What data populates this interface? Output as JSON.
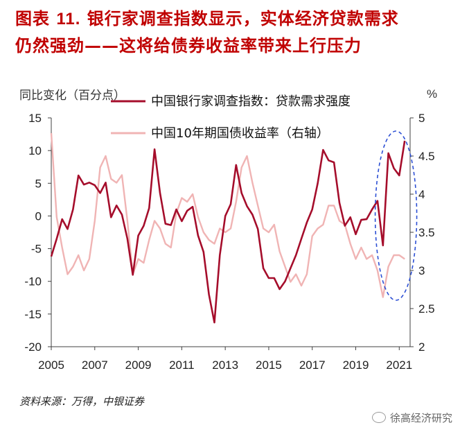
{
  "title": {
    "label": "图表",
    "number": "11.",
    "text_line1": "银行家调查指数显示，实体经济贷款需求",
    "text_line2": "仍然强劲——这将给债券收益率带来上行压力"
  },
  "source": "资料来源：万得，中银证券",
  "watermark": "徐高经济研究",
  "colors": {
    "title": "#c00000",
    "series1": "#a50d2b",
    "series2": "#f0b4b4",
    "ellipse": "#2c4fd4",
    "axis": "#404040"
  },
  "chart_data": {
    "type": "line",
    "left_axis_label": "同比变化（百分点）",
    "right_axis_label": "%",
    "left_ylim": [
      -20,
      15
    ],
    "left_ticks": [
      15,
      10,
      5,
      0,
      -5,
      -10,
      -15,
      -20
    ],
    "right_ylim": [
      2,
      5
    ],
    "right_ticks": [
      "5",
      "4.5",
      "4",
      "3.5",
      "3",
      "2.5",
      "2"
    ],
    "xlim": [
      2005,
      2021.5
    ],
    "x_ticks": [
      "2005",
      "2007",
      "2009",
      "2011",
      "2013",
      "2015",
      "2017",
      "2019",
      "2021"
    ],
    "legend_placement": "top",
    "grid": false,
    "series": [
      {
        "name": "中国银行家调查指数：贷款需求强度",
        "axis": "left",
        "x": [
          2005.0,
          2005.25,
          2005.5,
          2005.75,
          2006.0,
          2006.25,
          2006.5,
          2006.75,
          2007.0,
          2007.25,
          2007.5,
          2007.75,
          2008.0,
          2008.25,
          2008.5,
          2008.75,
          2009.0,
          2009.25,
          2009.5,
          2009.75,
          2010.0,
          2010.25,
          2010.5,
          2010.75,
          2011.0,
          2011.25,
          2011.5,
          2011.75,
          2012.0,
          2012.25,
          2012.5,
          2012.75,
          2013.0,
          2013.25,
          2013.5,
          2013.75,
          2014.0,
          2014.25,
          2014.5,
          2014.75,
          2015.0,
          2015.25,
          2015.5,
          2015.75,
          2016.0,
          2016.25,
          2016.5,
          2016.75,
          2017.0,
          2017.25,
          2017.5,
          2017.75,
          2018.0,
          2018.25,
          2018.5,
          2018.75,
          2019.0,
          2019.25,
          2019.5,
          2019.75,
          2020.0,
          2020.25,
          2020.5,
          2020.75,
          2021.0,
          2021.25
        ],
        "values": [
          -6.2,
          -3.5,
          -0.5,
          -2.0,
          1.0,
          6.2,
          4.8,
          5.1,
          4.7,
          3.5,
          5.1,
          -0.2,
          1.6,
          0.2,
          -3.5,
          -9.0,
          -3.0,
          -1.5,
          1.2,
          10.2,
          3.5,
          -1.2,
          -1.4,
          1.0,
          -0.8,
          0.8,
          1.4,
          -3.0,
          -5.5,
          -12.0,
          -16.3,
          -6.0,
          0.0,
          1.8,
          7.8,
          3.5,
          1.5,
          0.2,
          -2.0,
          -8.0,
          -9.5,
          -9.5,
          -11.2,
          -10.0,
          -8.0,
          -6.0,
          -3.5,
          -1.0,
          1.0,
          5.0,
          10.1,
          8.5,
          8.2,
          2.0,
          -1.5,
          -0.2,
          -2.8,
          -0.6,
          -0.5,
          1.0,
          2.3,
          -4.5,
          9.6,
          7.3,
          6.2,
          11.5
        ]
      },
      {
        "name": "中国10年期国债收益率（右轴）",
        "axis": "right",
        "x": [
          2005.0,
          2005.25,
          2005.5,
          2005.75,
          2006.0,
          2006.25,
          2006.5,
          2006.75,
          2007.0,
          2007.25,
          2007.5,
          2007.75,
          2008.0,
          2008.25,
          2008.5,
          2008.75,
          2009.0,
          2009.25,
          2009.5,
          2009.75,
          2010.0,
          2010.25,
          2010.5,
          2010.75,
          2011.0,
          2011.25,
          2011.5,
          2011.75,
          2012.0,
          2012.25,
          2012.5,
          2012.75,
          2013.0,
          2013.25,
          2013.5,
          2013.75,
          2014.0,
          2014.25,
          2014.5,
          2014.75,
          2015.0,
          2015.25,
          2015.5,
          2015.75,
          2016.0,
          2016.25,
          2016.5,
          2016.75,
          2017.0,
          2017.25,
          2017.5,
          2017.75,
          2018.0,
          2018.25,
          2018.5,
          2018.75,
          2019.0,
          2019.25,
          2019.5,
          2019.75,
          2020.0,
          2020.25,
          2020.5,
          2020.75,
          2021.0,
          2021.25
        ],
        "values": [
          4.8,
          3.7,
          3.3,
          2.95,
          3.05,
          3.2,
          3.0,
          3.15,
          3.65,
          4.35,
          4.5,
          4.2,
          4.15,
          4.25,
          3.65,
          2.95,
          3.15,
          3.1,
          3.4,
          3.65,
          3.55,
          3.35,
          3.3,
          3.75,
          3.95,
          3.9,
          4.0,
          3.7,
          3.5,
          3.4,
          3.35,
          3.55,
          3.5,
          3.55,
          3.9,
          4.35,
          4.5,
          4.15,
          3.85,
          3.55,
          3.5,
          3.6,
          3.25,
          3.05,
          2.85,
          2.95,
          2.8,
          2.95,
          3.45,
          3.55,
          3.6,
          3.85,
          3.85,
          3.65,
          3.6,
          3.35,
          3.15,
          3.3,
          3.15,
          3.2,
          3.0,
          2.65,
          3.05,
          3.2,
          3.2,
          3.15
        ]
      }
    ],
    "highlight": "ellipse around 2020-2021"
  }
}
